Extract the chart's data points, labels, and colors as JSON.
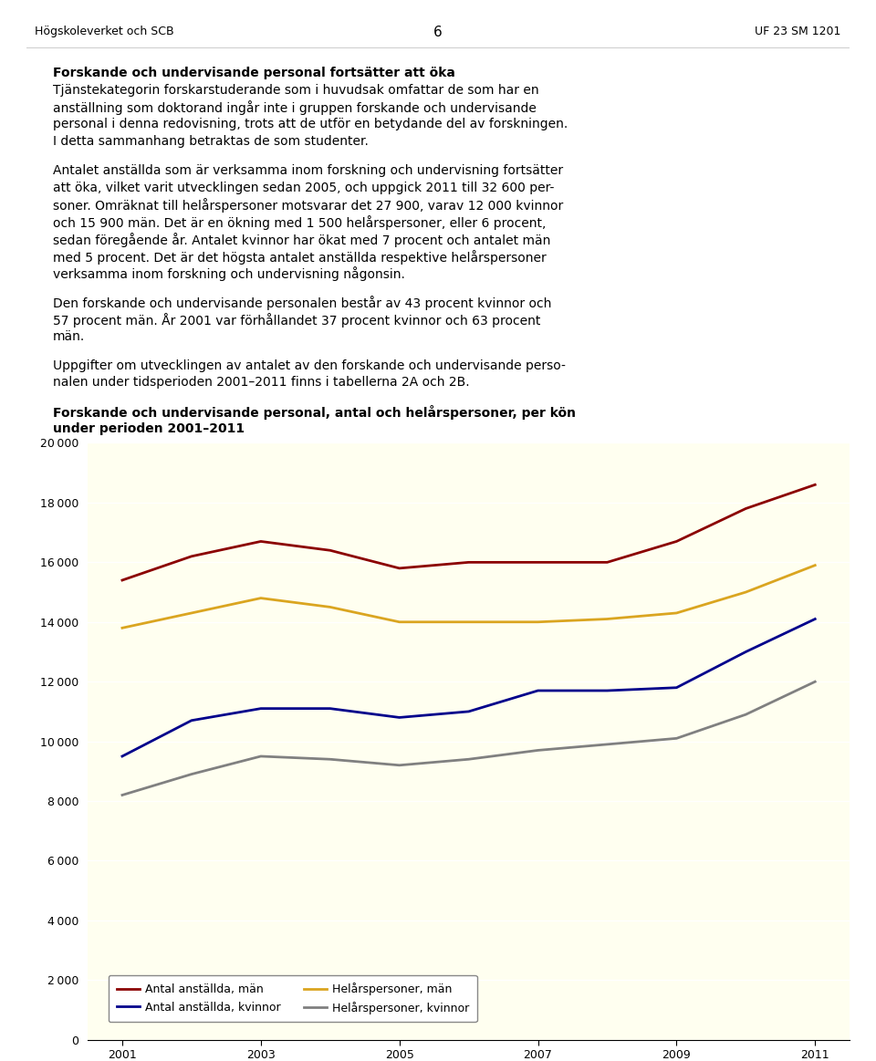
{
  "years": [
    2001,
    2002,
    2003,
    2004,
    2005,
    2006,
    2007,
    2008,
    2009,
    2010,
    2011
  ],
  "antal_anstallda_man": [
    15400,
    16200,
    16700,
    16400,
    15800,
    16000,
    16000,
    16000,
    16700,
    17800,
    18600
  ],
  "helars_man": [
    13800,
    14300,
    14800,
    14500,
    14000,
    14000,
    14000,
    14100,
    14300,
    15000,
    15900
  ],
  "antal_anstallda_kvinnor": [
    9500,
    10700,
    11100,
    11100,
    10800,
    11000,
    11700,
    11700,
    11800,
    13000,
    14100
  ],
  "helars_kvinnor": [
    8200,
    8900,
    9500,
    9400,
    9200,
    9400,
    9700,
    9900,
    10100,
    10900,
    12000
  ],
  "line_colors": {
    "antal_man": "#8B0000",
    "helars_man": "#DAA520",
    "antal_kvinnor": "#00008B",
    "helars_kvinnor": "#808080"
  },
  "plot_bg_color": "#FFFFF0",
  "ylim": [
    0,
    20000
  ],
  "yticks": [
    0,
    2000,
    4000,
    6000,
    8000,
    10000,
    12000,
    14000,
    16000,
    18000,
    20000
  ],
  "xticks": [
    2001,
    2003,
    2005,
    2007,
    2009,
    2011
  ],
  "legend_labels": [
    "Antal anställda, män",
    "Antal anställda, kvinnor",
    "Helårspersoner, män",
    "Helårspersoner, kvinnor"
  ],
  "header_left": "Högskoleverket och SCB",
  "header_center": "6",
  "header_right": "UF 23 SM 1201",
  "chart_title_line1": "Forskande och undervisande personal, antal och helårspersoner, per kön",
  "chart_title_line2": "under perioden 2001–2011"
}
